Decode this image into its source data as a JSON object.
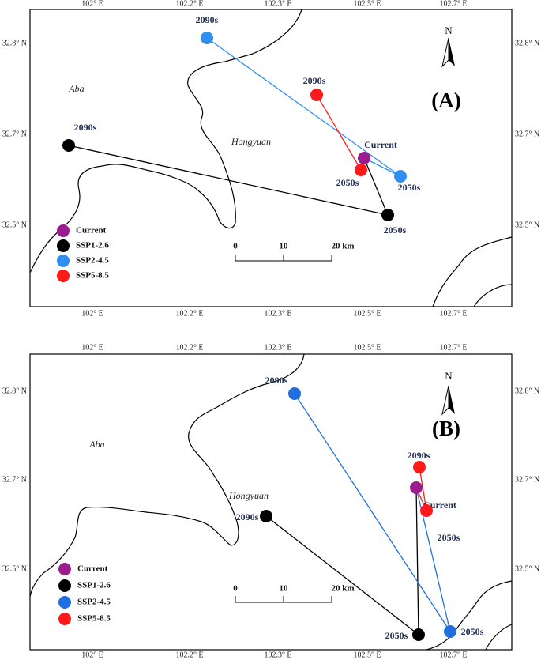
{
  "panels": [
    {
      "label": "(A)",
      "north": "N",
      "top_ticks": [
        "102° E",
        "102.2° E",
        "102.3° E",
        "102.5° E",
        "102.7° E"
      ],
      "bottom_ticks": [
        "102° E",
        "102.2° E",
        "102.3° E",
        "102.5° E",
        "102.7° E"
      ],
      "left_ticks": [
        "32.8° N",
        "32.7° N",
        "32.5° N"
      ],
      "right_ticks": [
        "32.8° N",
        "32.7° N",
        "32.5° N"
      ],
      "places": [
        "Aba",
        "Hongyuan"
      ],
      "legend": [
        {
          "name": "Current",
          "color": "#9b1c8f"
        },
        {
          "name": "SSP1-2.6",
          "color": "#000000"
        },
        {
          "name": "SSP2-4.5",
          "color": "#2f8ef0"
        },
        {
          "name": "SSP5-8.5",
          "color": "#ff1a1a"
        }
      ],
      "points": [
        "Current",
        "2050s",
        "2090s",
        "2050s",
        "2090s",
        "2050s",
        "2090s"
      ],
      "scale": [
        "0",
        "10",
        "20 km"
      ]
    },
    {
      "label": "(B)",
      "north": "N",
      "top_ticks": [
        "102° E",
        "102.2° E",
        "102.3° E",
        "102.5° E",
        "102.7° E"
      ],
      "bottom_ticks": [
        "102° E",
        "102.2° E",
        "102.3° E",
        "102.5° E",
        "102.7° E"
      ],
      "left_ticks": [
        "32.8° N",
        "32.7° N",
        "32.5° N"
      ],
      "right_ticks": [
        "32.8° N",
        "32.7° N",
        "32.5° N"
      ],
      "places": [
        "Aba",
        "Hongyuan"
      ],
      "legend": [
        {
          "name": "Current",
          "color": "#9b1c8f"
        },
        {
          "name": "SSP1-2.6",
          "color": "#000000"
        },
        {
          "name": "SSP2-4.5",
          "color": "#1f6fe0"
        },
        {
          "name": "SSP5-8.5",
          "color": "#ff1a1a"
        }
      ],
      "points": [
        "Current",
        "2050s",
        "2090s",
        "2050s",
        "2090s",
        "2050s",
        "2090s"
      ],
      "scale": [
        "0",
        "10",
        "20 km"
      ]
    }
  ]
}
